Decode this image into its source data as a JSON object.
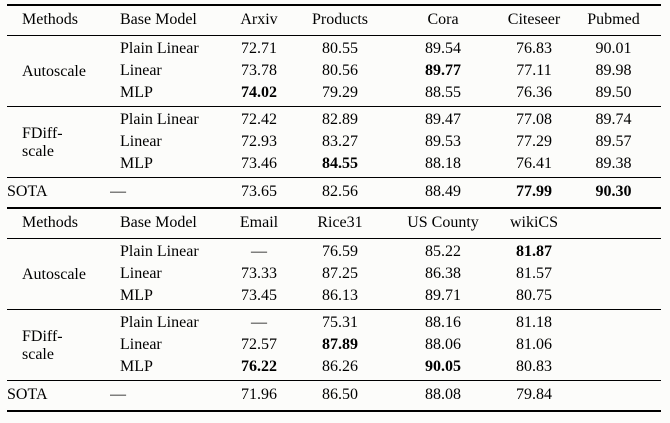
{
  "colors": {
    "background": "#fcfcfa",
    "text": "#000000",
    "rule": "#000000"
  },
  "tables": [
    {
      "headers": [
        "Methods",
        "Base Model",
        "Arxiv",
        "Products",
        "Cora",
        "Citeseer",
        "Pubmed"
      ],
      "groups": [
        {
          "method_lines": [
            "Autoscale"
          ],
          "rows": [
            {
              "base_model": "Plain Linear",
              "values": [
                "72.71",
                "80.55",
                "89.54",
                "76.83",
                "90.01"
              ],
              "bold": [
                false,
                false,
                false,
                false,
                false
              ]
            },
            {
              "base_model": "Linear",
              "values": [
                "73.78",
                "80.56",
                "89.77",
                "77.11",
                "89.98"
              ],
              "bold": [
                false,
                false,
                true,
                false,
                false
              ]
            },
            {
              "base_model": "MLP",
              "values": [
                "74.02",
                "79.29",
                "88.55",
                "76.36",
                "89.50"
              ],
              "bold": [
                true,
                false,
                false,
                false,
                false
              ]
            }
          ]
        },
        {
          "method_lines": [
            "FDiff-",
            "scale"
          ],
          "rows": [
            {
              "base_model": "Plain Linear",
              "values": [
                "72.42",
                "82.89",
                "89.47",
                "77.08",
                "89.74"
              ],
              "bold": [
                false,
                false,
                false,
                false,
                false
              ]
            },
            {
              "base_model": "Linear",
              "values": [
                "72.93",
                "83.27",
                "89.53",
                "77.29",
                "89.57"
              ],
              "bold": [
                false,
                false,
                false,
                false,
                false
              ]
            },
            {
              "base_model": "MLP",
              "values": [
                "73.46",
                "84.55",
                "88.18",
                "76.41",
                "89.38"
              ],
              "bold": [
                false,
                true,
                false,
                false,
                false
              ]
            }
          ]
        }
      ],
      "sota": {
        "label": "SOTA",
        "base_model": "—",
        "values": [
          "73.65",
          "82.56",
          "88.49",
          "77.99",
          "90.30"
        ],
        "bold": [
          false,
          false,
          false,
          true,
          true
        ]
      }
    },
    {
      "headers": [
        "Methods",
        "Base Model",
        "Email",
        "Rice31",
        "US County",
        "wikiCS",
        ""
      ],
      "groups": [
        {
          "method_lines": [
            "Autoscale"
          ],
          "rows": [
            {
              "base_model": "Plain Linear",
              "values": [
                "—",
                "76.59",
                "85.22",
                "81.87",
                ""
              ],
              "bold": [
                false,
                false,
                false,
                true,
                false
              ]
            },
            {
              "base_model": "Linear",
              "values": [
                "73.33",
                "87.25",
                "86.38",
                "81.57",
                ""
              ],
              "bold": [
                false,
                false,
                false,
                false,
                false
              ]
            },
            {
              "base_model": "MLP",
              "values": [
                "73.45",
                "86.13",
                "89.71",
                "80.75",
                ""
              ],
              "bold": [
                false,
                false,
                false,
                false,
                false
              ]
            }
          ]
        },
        {
          "method_lines": [
            "FDiff-",
            "scale"
          ],
          "rows": [
            {
              "base_model": "Plain Linear",
              "values": [
                "—",
                "75.31",
                "88.16",
                "81.18",
                ""
              ],
              "bold": [
                false,
                false,
                false,
                false,
                false
              ]
            },
            {
              "base_model": "Linear",
              "values": [
                "72.57",
                "87.89",
                "88.06",
                "81.06",
                ""
              ],
              "bold": [
                false,
                true,
                false,
                false,
                false
              ]
            },
            {
              "base_model": "MLP",
              "values": [
                "76.22",
                "86.26",
                "90.05",
                "80.83",
                ""
              ],
              "bold": [
                true,
                false,
                true,
                false,
                false
              ]
            }
          ]
        }
      ],
      "sota": {
        "label": "SOTA",
        "base_model": "—",
        "values": [
          "71.96",
          "86.50",
          "88.08",
          "79.84",
          ""
        ],
        "bold": [
          false,
          false,
          false,
          false,
          false
        ]
      }
    }
  ]
}
